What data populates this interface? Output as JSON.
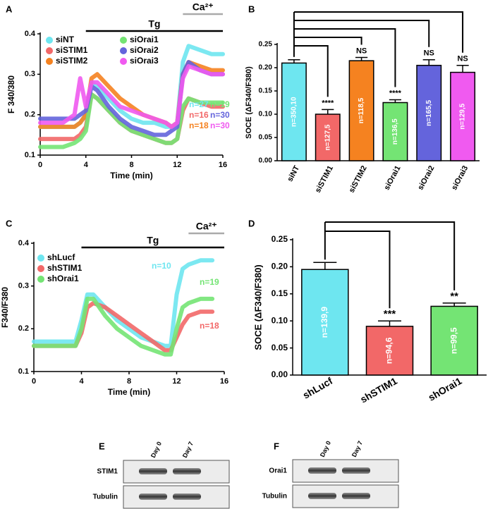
{
  "chart_data": [
    {
      "type": "line",
      "panel": "A",
      "xlabel": "Time (min)",
      "ylabel": "F 340/380",
      "xlim": [
        0,
        16
      ],
      "xticks": [
        0,
        4,
        8,
        12,
        16
      ],
      "ylim": [
        0.1,
        0.4
      ],
      "yticks": [
        0.1,
        0.2,
        0.3,
        0.4
      ],
      "legend": "upper left",
      "legend_columns": 2,
      "annotations": [
        {
          "text": "Tg",
          "x": [
            4,
            16
          ],
          "color": "#000000"
        },
        {
          "text": "Ca²⁺",
          "x": [
            12.5,
            16
          ],
          "color": "#aaaaaa"
        }
      ],
      "x": [
        0,
        1,
        2,
        3,
        3.5,
        4,
        4.5,
        5,
        6,
        7,
        8,
        9,
        10,
        11,
        11.5,
        12,
        12.5,
        13,
        14,
        15,
        16
      ],
      "series": [
        {
          "name": "siNT",
          "color": "#6ee6f0",
          "n_label": "n=27",
          "values": [
            0.17,
            0.17,
            0.17,
            0.17,
            0.18,
            0.2,
            0.28,
            0.27,
            0.24,
            0.21,
            0.19,
            0.18,
            0.18,
            0.17,
            0.17,
            0.18,
            0.33,
            0.37,
            0.36,
            0.35,
            0.35
          ]
        },
        {
          "name": "siSTIM1",
          "color": "#f26868",
          "n_label": "n=16",
          "values": [
            0.14,
            0.14,
            0.14,
            0.14,
            0.15,
            0.17,
            0.25,
            0.24,
            0.21,
            0.18,
            0.16,
            0.15,
            0.14,
            0.13,
            0.13,
            0.14,
            0.21,
            0.24,
            0.23,
            0.22,
            0.22
          ]
        },
        {
          "name": "siSTIM2",
          "color": "#f58220",
          "n_label": "n=18",
          "values": [
            0.17,
            0.17,
            0.17,
            0.17,
            0.18,
            0.2,
            0.29,
            0.3,
            0.27,
            0.24,
            0.22,
            0.2,
            0.19,
            0.18,
            0.17,
            0.18,
            0.3,
            0.33,
            0.32,
            0.31,
            0.31
          ]
        },
        {
          "name": "siOrai1",
          "color": "#74e474",
          "n_label": "n=19",
          "values": [
            0.12,
            0.12,
            0.12,
            0.13,
            0.14,
            0.16,
            0.25,
            0.24,
            0.21,
            0.18,
            0.16,
            0.15,
            0.14,
            0.13,
            0.13,
            0.14,
            0.22,
            0.24,
            0.23,
            0.23,
            0.23
          ]
        },
        {
          "name": "siOrai2",
          "color": "#6464dc",
          "n_label": "n=30",
          "values": [
            0.19,
            0.19,
            0.19,
            0.19,
            0.2,
            0.21,
            0.27,
            0.26,
            0.22,
            0.19,
            0.17,
            0.16,
            0.15,
            0.15,
            0.16,
            0.17,
            0.3,
            0.33,
            0.31,
            0.3,
            0.3
          ]
        },
        {
          "name": "siOrai3",
          "color": "#f05af0",
          "n_label": "n=30",
          "values": [
            0.18,
            0.18,
            0.18,
            0.2,
            0.29,
            0.22,
            0.28,
            0.28,
            0.25,
            0.22,
            0.21,
            0.2,
            0.19,
            0.18,
            0.17,
            0.18,
            0.29,
            0.32,
            0.31,
            0.3,
            0.3
          ]
        }
      ]
    },
    {
      "type": "bar",
      "panel": "B",
      "ylabel": "SOCE (ΔF340/F380)",
      "ylim": [
        0,
        0.25
      ],
      "yticks": [
        {
          "value": 0,
          "label": "0.00"
        },
        {
          "value": 0.05,
          "label": "0.05"
        },
        {
          "value": 0.1,
          "label": "0.10"
        },
        {
          "value": 0.15,
          "label": "0.15"
        },
        {
          "value": 0.2,
          "label": "0.20"
        },
        0.25
      ],
      "categories": [
        "siNT",
        "siSTIM1",
        "siSTIM2",
        "siOrai1",
        "siOrai2",
        "siOrai3"
      ],
      "colors": [
        "#6ee6f0",
        "#f26868",
        "#f58220",
        "#74e474",
        "#6464dc",
        "#f05af0"
      ],
      "values": [
        0.21,
        0.1,
        0.215,
        0.125,
        0.205,
        0.19
      ],
      "errors": [
        0.007,
        0.01,
        0.007,
        0.006,
        0.012,
        0.015
      ],
      "n_labels": [
        "n=350,10",
        "n=127,5",
        "n=118,5",
        "n=136,5",
        "n=165,5",
        "n=129,5"
      ],
      "significance": [
        null,
        "****",
        "NS",
        "****",
        "NS",
        "NS"
      ]
    },
    {
      "type": "line",
      "panel": "C",
      "xlabel": "Time (min)",
      "ylabel": "F340/F380",
      "xlim": [
        0,
        16
      ],
      "xticks": [
        0,
        4,
        8,
        12,
        16
      ],
      "ylim": [
        0.1,
        0.4
      ],
      "yticks": [
        0.1,
        0.2,
        0.3,
        0.4
      ],
      "legend": "upper left",
      "legend_columns": 1,
      "annotations": [
        {
          "text": "Tg",
          "x": [
            4,
            16
          ],
          "color": "#000000"
        },
        {
          "text": "Ca²⁺",
          "x": [
            13,
            16
          ],
          "color": "#aaaaaa"
        }
      ],
      "x": [
        0,
        1,
        2,
        3,
        3.5,
        4,
        4.5,
        5,
        6,
        7,
        8,
        9,
        10,
        11,
        11.5,
        12,
        12.5,
        13,
        14,
        15
      ],
      "series": [
        {
          "name": "shLucf",
          "color": "#6ee6f0",
          "n_label": "n=10",
          "values": [
            0.17,
            0.17,
            0.17,
            0.17,
            0.17,
            0.22,
            0.28,
            0.28,
            0.25,
            0.22,
            0.2,
            0.18,
            0.17,
            0.16,
            0.16,
            0.28,
            0.34,
            0.35,
            0.36,
            0.36
          ]
        },
        {
          "name": "shSTIM1",
          "color": "#f26868",
          "n_label": "n=18",
          "values": [
            0.16,
            0.16,
            0.16,
            0.16,
            0.16,
            0.19,
            0.25,
            0.26,
            0.25,
            0.23,
            0.21,
            0.19,
            0.17,
            0.15,
            0.15,
            0.18,
            0.21,
            0.23,
            0.24,
            0.24
          ]
        },
        {
          "name": "shOrai1",
          "color": "#74e474",
          "n_label": "n=19",
          "values": [
            0.16,
            0.16,
            0.16,
            0.16,
            0.16,
            0.2,
            0.27,
            0.27,
            0.23,
            0.2,
            0.18,
            0.16,
            0.15,
            0.14,
            0.14,
            0.2,
            0.25,
            0.26,
            0.27,
            0.27
          ]
        }
      ]
    },
    {
      "type": "bar",
      "panel": "D",
      "ylabel": "SOCE (ΔF340/F380)",
      "ylim": [
        0,
        0.25
      ],
      "yticks": [
        {
          "value": 0,
          "label": "0.00"
        },
        {
          "value": 0.05,
          "label": "0.05"
        },
        {
          "value": 0.1,
          "label": "0.10"
        },
        {
          "value": 0.15,
          "label": "0.15"
        },
        {
          "value": 0.2,
          "label": "0.20"
        },
        0.25
      ],
      "categories": [
        "shLucf",
        "shSTIM1",
        "shOrai1"
      ],
      "colors": [
        "#6ee6f0",
        "#f26868",
        "#74e474"
      ],
      "values": [
        0.195,
        0.09,
        0.127
      ],
      "errors": [
        0.013,
        0.01,
        0.006
      ],
      "n_labels": [
        "n=139,9",
        "n=94,6",
        "n=99,5"
      ],
      "significance": [
        null,
        "***",
        "**"
      ]
    }
  ],
  "blots": [
    {
      "panel": "E",
      "lanes": [
        "Day 0",
        "Day 7"
      ],
      "rows": [
        "STIM1",
        "Tubulin"
      ]
    },
    {
      "panel": "F",
      "lanes": [
        "Day 0",
        "Day 7"
      ],
      "rows": [
        "Orai1",
        "Tubulin"
      ]
    }
  ]
}
